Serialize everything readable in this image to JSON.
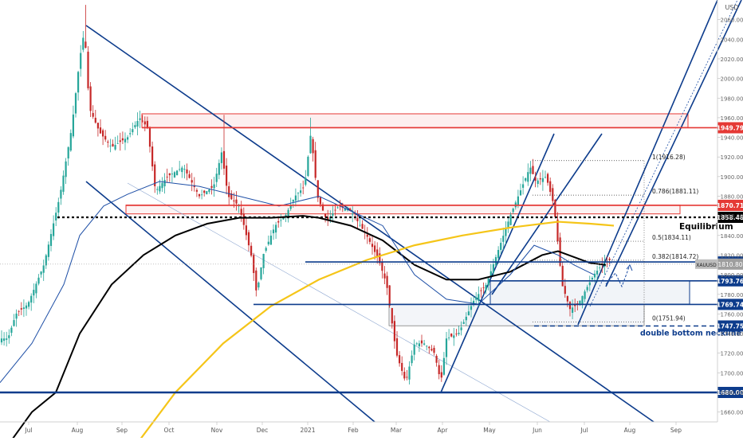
{
  "chart_data": {
    "type": "candlestick",
    "symbol_label": "XAUUSD",
    "currency_label": "USD",
    "x_tick_labels": [
      "Jul",
      "Aug",
      "Sep",
      "Oct",
      "Nov",
      "Dec",
      "2021",
      "Feb",
      "Mar",
      "Apr",
      "May",
      "Jun",
      "Jul",
      "Aug",
      "Sep"
    ],
    "y_axis": {
      "min": 1640,
      "max": 2080,
      "step": 20
    },
    "horizontal_levels": [
      {
        "value": 1949.79,
        "label": "1949.79",
        "color": "#e53935",
        "style": "solid"
      },
      {
        "value": 1870.71,
        "label": "1870.71",
        "color": "#e53935",
        "style": "solid"
      },
      {
        "value": 1858.48,
        "label": "1858.48",
        "color": "#000000",
        "style": "dotted"
      },
      {
        "value": 1813.03,
        "label": "1813.03",
        "color": "#0d3c8c",
        "style": "solid"
      },
      {
        "value": 1793.76,
        "label": "1793.76",
        "color": "#0d3c8c",
        "style": "solid"
      },
      {
        "value": 1769.74,
        "label": "1769.74",
        "color": "#0d3c8c",
        "style": "solid"
      },
      {
        "value": 1747.75,
        "label": "1747.75",
        "color": "#0d3c8c",
        "style": "dashed"
      },
      {
        "value": 1680.0,
        "label": "1680.00",
        "color": "#0d3c8c",
        "style": "solid"
      }
    ],
    "current_price": {
      "value": 1810.8,
      "label": "1810.80"
    },
    "fibonacci": [
      {
        "value": 1916.28,
        "label": "1(1916.28)"
      },
      {
        "value": 1881.11,
        "label": "0.786(1881.11)"
      },
      {
        "value": 1834.11,
        "label": "0.5(1834.11)"
      },
      {
        "value": 1814.72,
        "label": "0.382(1814.72)"
      },
      {
        "value": 1751.94,
        "label": "0(1751.94)"
      }
    ],
    "annotations": [
      {
        "text": "Equilibrium"
      },
      {
        "text": "double bottom neckline"
      }
    ],
    "grid": false,
    "colors": {
      "up_candle": "#26a69a",
      "down_candle": "#c62828",
      "ma_black": "#000000",
      "ma_yellow": "#f5c518",
      "ma_blue": "#1e4fa6",
      "channel": "#0d3c8c",
      "resistance": "#e53935"
    }
  }
}
